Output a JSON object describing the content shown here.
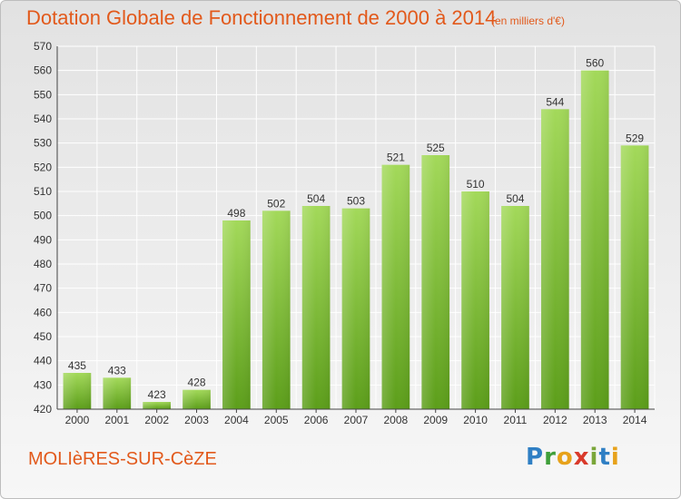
{
  "header": {
    "title": "Dotation Globale de Fonctionnement de 2000 à 2014",
    "unit_note": "(en milliers d'€)"
  },
  "footer": {
    "commune": "MOLIèRES-SUR-CèZE",
    "logo_letters": [
      "P",
      "r",
      "o",
      "x",
      "i",
      "t",
      "i"
    ]
  },
  "colors": {
    "text_accent": "#e2591b",
    "bar_top": "#a3d95a",
    "bar_bottom": "#5c9e1a",
    "grid": "#ffffff",
    "axis": "#444444"
  },
  "chart_data": {
    "type": "bar",
    "title": "Dotation Globale de Fonctionnement de 2000 à 2014",
    "subtitle": "(en milliers d'€)",
    "xlabel": "",
    "ylabel": "",
    "categories": [
      "2000",
      "2001",
      "2002",
      "2003",
      "2004",
      "2005",
      "2006",
      "2007",
      "2008",
      "2009",
      "2010",
      "2011",
      "2012",
      "2013",
      "2014"
    ],
    "values": [
      435,
      433,
      423,
      428,
      498,
      502,
      504,
      503,
      521,
      525,
      510,
      504,
      544,
      560,
      529
    ],
    "ylim": [
      420,
      570
    ],
    "yticks": [
      420,
      430,
      440,
      450,
      460,
      470,
      480,
      490,
      500,
      510,
      520,
      530,
      540,
      550,
      560,
      570
    ],
    "grid": true,
    "data_labels": true,
    "legend": "none"
  }
}
